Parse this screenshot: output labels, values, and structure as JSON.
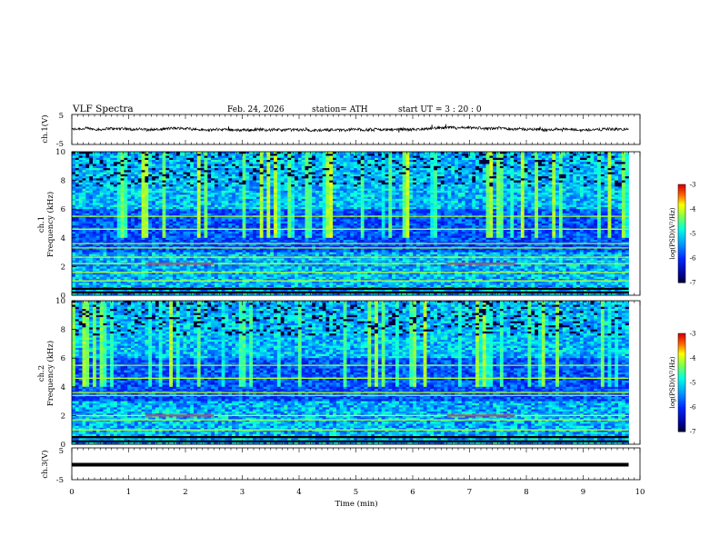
{
  "header": {
    "title": "VLF  Spectra",
    "date": "Feb. 24, 2026",
    "station": "station= ATH",
    "start_ut": "start  UT  =    3  : 20 : 0"
  },
  "chart_data": [
    {
      "type": "line",
      "name": "ch1-waveform",
      "ylabel": "ch.1(V)",
      "yticks": [
        "5",
        "-5"
      ],
      "ylim": [
        -5,
        5
      ],
      "xlim": [
        0,
        10
      ],
      "baseline": 0
    },
    {
      "type": "heatmap",
      "name": "ch1-spectrogram",
      "ylabel_line1": "ch.1",
      "ylabel_line2": "Frequency  (kHz)",
      "ylim": [
        0,
        10
      ],
      "yticks": [
        "0",
        "2",
        "4",
        "6",
        "8",
        "10"
      ],
      "xlim": [
        0,
        9.8
      ],
      "colorbar": {
        "label": "log(PSD)(V²/Hz)",
        "range": [
          -7,
          -3
        ],
        "ticks": [
          "-3",
          "-4",
          "-5",
          "-6",
          "-7"
        ]
      },
      "bands_khz": [
        0.2,
        0.45,
        1.0,
        1.6,
        2.2,
        2.65,
        3.3,
        3.6,
        4.6,
        5.5
      ],
      "strong_band_segments": [
        {
          "f": 2.2,
          "t": [
            1.3,
            2.5
          ]
        },
        {
          "f": 2.2,
          "t": [
            6.6,
            7.8
          ]
        }
      ]
    },
    {
      "type": "heatmap",
      "name": "ch2-spectrogram",
      "ylabel_line1": "ch.2",
      "ylabel_line2": "Frequency  (kHz)",
      "ylim": [
        0,
        10
      ],
      "yticks": [
        "0",
        "2",
        "4",
        "6",
        "8",
        "10"
      ],
      "xlim": [
        0,
        9.8
      ],
      "colorbar": {
        "label": "log(PSD)(V²/Hz)",
        "range": [
          -7,
          -3
        ],
        "ticks": [
          "-3",
          "-4",
          "-5",
          "-6",
          "-7"
        ]
      },
      "bands_khz": [
        0.2,
        0.5,
        1.0,
        1.7,
        2.0,
        3.4,
        3.6,
        4.6,
        5.5
      ],
      "strong_band_segments": [
        {
          "f": 2.0,
          "t": [
            1.3,
            2.5
          ]
        },
        {
          "f": 2.0,
          "t": [
            6.6,
            7.8
          ]
        }
      ]
    },
    {
      "type": "line",
      "name": "ch3-waveform",
      "ylabel": "ch.3(V)",
      "yticks": [
        "5",
        "-5"
      ],
      "ylim": [
        -5,
        5
      ],
      "xlim": [
        0,
        10
      ],
      "baseline": -0.3
    }
  ],
  "xaxis": {
    "label": "Time  (min)",
    "ticks": [
      "0",
      "1",
      "2",
      "3",
      "4",
      "5",
      "6",
      "7",
      "8",
      "9",
      "10"
    ],
    "range": [
      0,
      10
    ]
  }
}
